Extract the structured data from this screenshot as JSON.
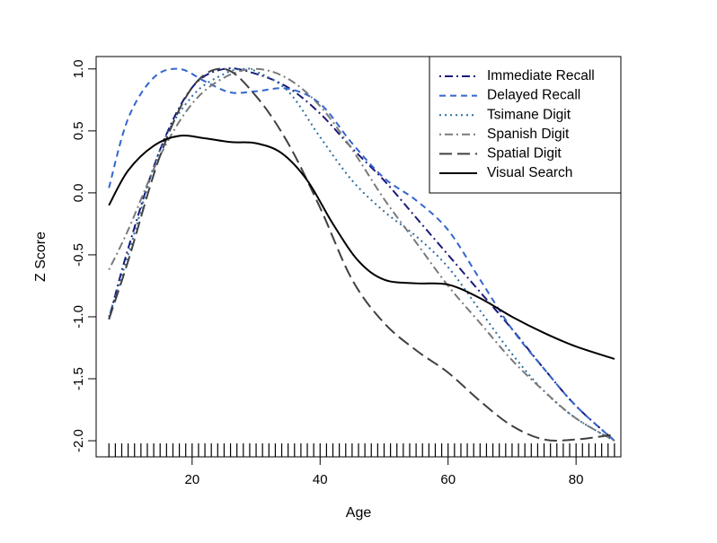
{
  "chart_data": {
    "type": "line",
    "title": "",
    "xlabel": "Age",
    "ylabel": "Z Score",
    "xlim": [
      5,
      87
    ],
    "ylim": [
      -2.13,
      1.1
    ],
    "xticks": [
      {
        "value": 20,
        "label": "20"
      },
      {
        "value": 40,
        "label": "40"
      },
      {
        "value": 60,
        "label": "60"
      },
      {
        "value": 80,
        "label": "80"
      }
    ],
    "yticks": [
      {
        "value": 1.0,
        "label": "1.0"
      },
      {
        "value": 0.5,
        "label": "0.5"
      },
      {
        "value": 0.0,
        "label": "0.0"
      },
      {
        "value": -0.5,
        "label": "-0.5"
      },
      {
        "value": -1.0,
        "label": "-1.0"
      },
      {
        "value": -1.5,
        "label": "-1.5"
      },
      {
        "value": -2.0,
        "label": "-2.0"
      }
    ],
    "grid": false,
    "legend_position": "top-right",
    "rug_ages": [
      7,
      8,
      9,
      10,
      11,
      12,
      13,
      14,
      15,
      16,
      17,
      18,
      19,
      20,
      21,
      22,
      23,
      24,
      25,
      26,
      27,
      28,
      29,
      30,
      31,
      32,
      33,
      34,
      35,
      36,
      37,
      38,
      39,
      40,
      41,
      42,
      43,
      44,
      45,
      46,
      47,
      48,
      49,
      50,
      51,
      52,
      53,
      54,
      55,
      56,
      57,
      58,
      59,
      60,
      61,
      62,
      63,
      64,
      65,
      66,
      67,
      68,
      69,
      70,
      71,
      72,
      73,
      74,
      75,
      76,
      77,
      78,
      79,
      80,
      81,
      82,
      83,
      84,
      85,
      86
    ],
    "series": [
      {
        "name": "Immediate Recall",
        "color": "#1a1a7a",
        "dash": "dashdot",
        "x": [
          7,
          10,
          15,
          20,
          25,
          30,
          35,
          40,
          45,
          50,
          55,
          60,
          65,
          70,
          75,
          80,
          86
        ],
        "y": [
          -1.02,
          -0.45,
          0.35,
          0.85,
          1.0,
          0.96,
          0.85,
          0.64,
          0.36,
          0.1,
          -0.2,
          -0.5,
          -0.8,
          -1.1,
          -1.42,
          -1.72,
          -2.0
        ]
      },
      {
        "name": "Delayed Recall",
        "color": "#3366cc",
        "dash": "dashed",
        "x": [
          7,
          10,
          14,
          18,
          22,
          26,
          30,
          35,
          40,
          45,
          50,
          55,
          60,
          65,
          70,
          75,
          80,
          86
        ],
        "y": [
          0.04,
          0.6,
          0.93,
          1.0,
          0.9,
          0.81,
          0.82,
          0.84,
          0.72,
          0.4,
          0.12,
          -0.06,
          -0.3,
          -0.7,
          -1.1,
          -1.42,
          -1.72,
          -2.0
        ]
      },
      {
        "name": "Tsimane Digit",
        "color": "#2e6e9e",
        "dash": "dotted",
        "x": [
          7,
          10,
          15,
          20,
          25,
          28,
          30,
          35,
          40,
          45,
          50,
          55,
          60,
          65,
          70,
          75,
          80,
          86
        ],
        "y": [
          -1.0,
          -0.5,
          0.35,
          0.78,
          0.96,
          1.0,
          0.98,
          0.82,
          0.45,
          0.1,
          -0.15,
          -0.35,
          -0.6,
          -0.95,
          -1.3,
          -1.6,
          -1.82,
          -2.0
        ]
      },
      {
        "name": "Spanish Digit",
        "color": "#7a7a7a",
        "dash": "dashdot",
        "x": [
          7,
          10,
          15,
          20,
          25,
          30,
          35,
          40,
          45,
          50,
          55,
          60,
          65,
          70,
          75,
          80,
          86
        ],
        "y": [
          -0.62,
          -0.3,
          0.3,
          0.72,
          0.93,
          1.0,
          0.92,
          0.7,
          0.35,
          -0.05,
          -0.4,
          -0.75,
          -1.05,
          -1.35,
          -1.6,
          -1.82,
          -2.0
        ]
      },
      {
        "name": "Spatial Digit",
        "color": "#404040",
        "dash": "longdash",
        "x": [
          7,
          10,
          15,
          20,
          25,
          30,
          35,
          40,
          45,
          50,
          55,
          60,
          65,
          70,
          75,
          80,
          86
        ],
        "y": [
          -1.02,
          -0.55,
          0.3,
          0.85,
          1.0,
          0.78,
          0.4,
          -0.12,
          -0.7,
          -1.05,
          -1.27,
          -1.45,
          -1.68,
          -1.88,
          -1.99,
          -1.99,
          -1.95
        ]
      },
      {
        "name": "Visual Search",
        "color": "#000000",
        "dash": "solid",
        "x": [
          7,
          10,
          14,
          18,
          22,
          26,
          30,
          34,
          38,
          42,
          46,
          50,
          55,
          60,
          65,
          70,
          75,
          80,
          86
        ],
        "y": [
          -0.1,
          0.18,
          0.38,
          0.46,
          0.44,
          0.41,
          0.4,
          0.32,
          0.1,
          -0.25,
          -0.55,
          -0.7,
          -0.73,
          -0.74,
          -0.85,
          -1.0,
          -1.13,
          -1.24,
          -1.34
        ]
      }
    ]
  }
}
